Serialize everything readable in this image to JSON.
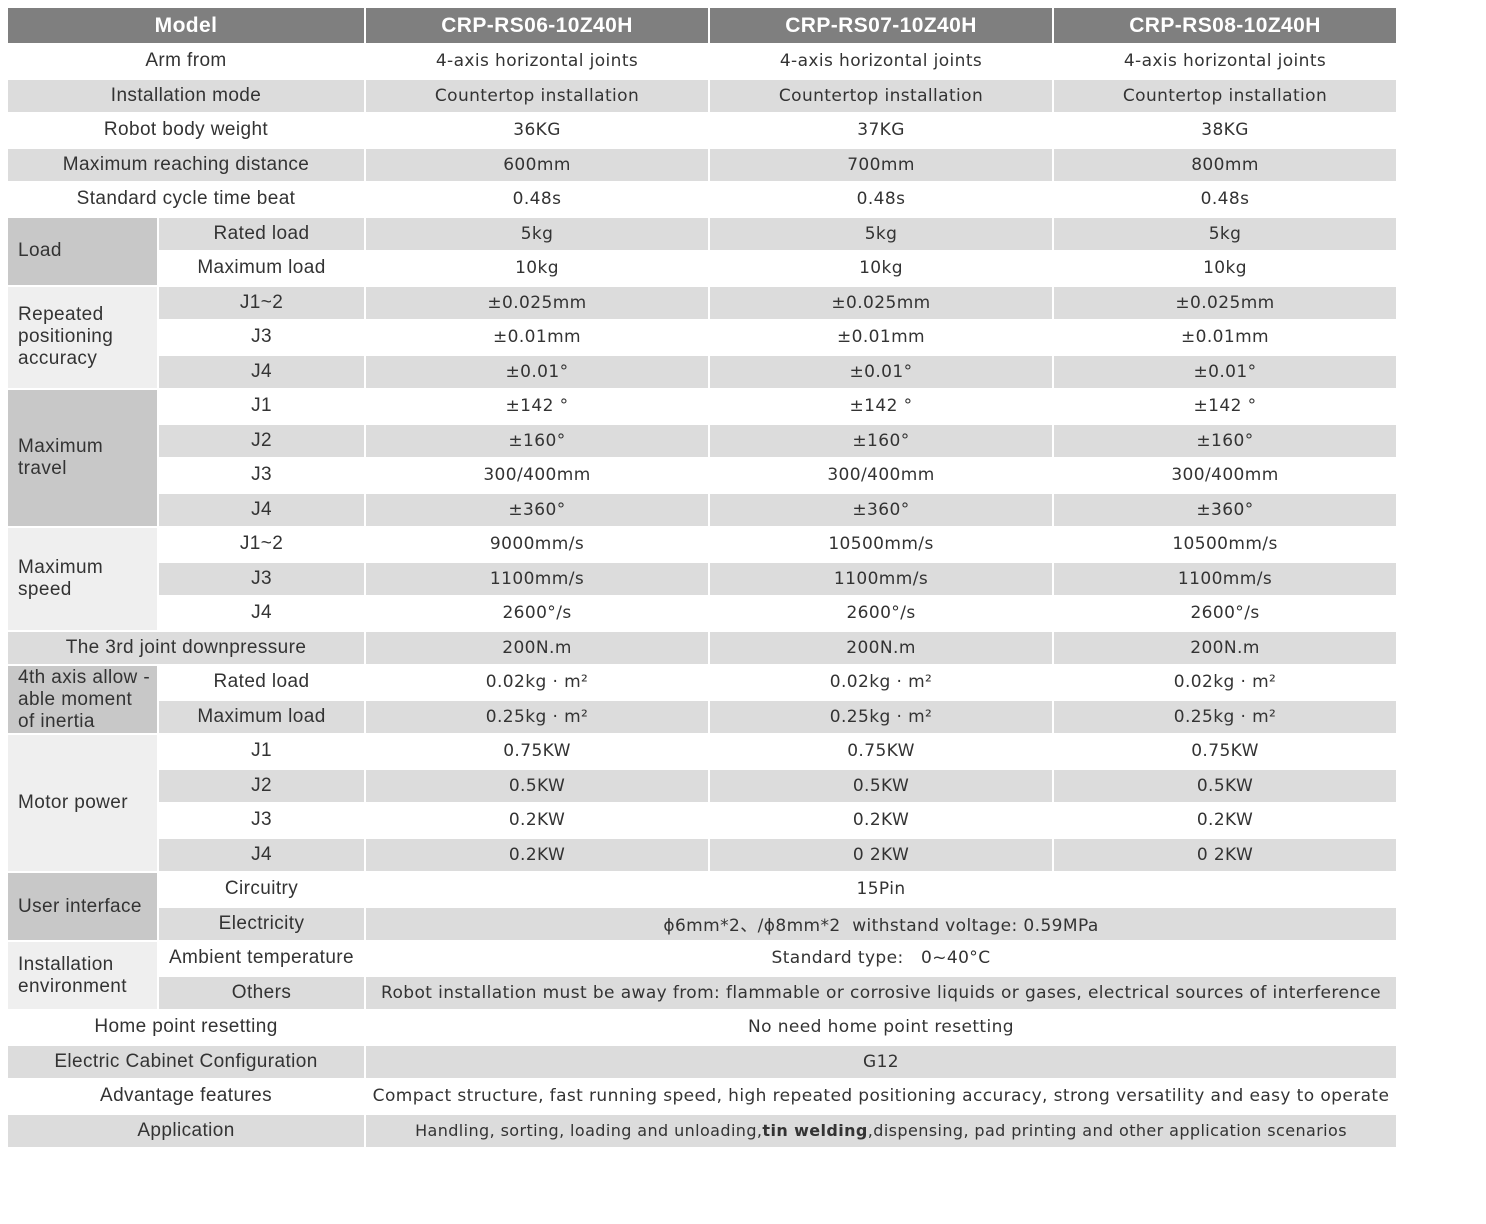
{
  "table": {
    "header": [
      "Model",
      "CRP-RS06-10Z40H",
      "CRP-RS07-10Z40H",
      "CRP-RS08-10Z40H"
    ],
    "rows": [
      {
        "label": "Arm from",
        "values": [
          "4-axis horizontal joints",
          "4-axis horizontal joints",
          "4-axis horizontal joints"
        ]
      },
      {
        "label": "Installation mode",
        "values": [
          "Countertop installation",
          "Countertop installation",
          "Countertop installation"
        ]
      },
      {
        "label": "Robot body weight",
        "values": [
          "36KG",
          "37KG",
          "38KG"
        ]
      },
      {
        "label": "Maximum reaching distance",
        "values": [
          "600mm",
          "700mm",
          "800mm"
        ]
      },
      {
        "label": "Standard cycle time beat",
        "values": [
          "0.48s",
          "0.48s",
          "0.48s"
        ]
      },
      {
        "group": "Load",
        "rows": [
          {
            "label": "Rated load",
            "values": [
              "5kg",
              "5kg",
              "5kg"
            ]
          },
          {
            "label": "Maximum load",
            "values": [
              "10kg",
              "10kg",
              "10kg"
            ]
          }
        ]
      },
      {
        "group": "Repeated positioning accuracy",
        "rows": [
          {
            "label": "J1~2",
            "values": [
              "±0.025mm",
              "±0.025mm",
              "±0.025mm"
            ]
          },
          {
            "label": "J3",
            "values": [
              "±0.01mm",
              "±0.01mm",
              "±0.01mm"
            ]
          },
          {
            "label": "J4",
            "values": [
              "±0.01°",
              "±0.01°",
              "±0.01°"
            ]
          }
        ]
      },
      {
        "group": "Maximum travel",
        "rows": [
          {
            "label": "J1",
            "values": [
              "±142 °",
              "±142 °",
              "±142 °"
            ]
          },
          {
            "label": "J2",
            "values": [
              "±160°",
              "±160°",
              "±160°"
            ]
          },
          {
            "label": "J3",
            "values": [
              "300/400mm",
              "300/400mm",
              "300/400mm"
            ]
          },
          {
            "label": "J4",
            "values": [
              "±360°",
              "±360°",
              "±360°"
            ]
          }
        ]
      },
      {
        "group": "Maximum speed",
        "rows": [
          {
            "label": "J1~2",
            "values": [
              "9000mm/s",
              "10500mm/s",
              "10500mm/s"
            ]
          },
          {
            "label": "J3",
            "values": [
              "1100mm/s",
              "1100mm/s",
              "1100mm/s"
            ]
          },
          {
            "label": "J4",
            "values": [
              "2600°/s",
              "2600°/s",
              "2600°/s"
            ]
          }
        ]
      },
      {
        "label": "The 3rd joint downpressure",
        "values": [
          "200N.m",
          "200N.m",
          "200N.m"
        ]
      },
      {
        "group": "4th axis allow -able moment of inertia",
        "rows": [
          {
            "label": "Rated load",
            "values": [
              "0.02kg · m²",
              "0.02kg · m²",
              "0.02kg · m²"
            ]
          },
          {
            "label": "Maximum load",
            "values": [
              "0.25kg · m²",
              "0.25kg · m²",
              "0.25kg · m²"
            ]
          }
        ]
      },
      {
        "group": "Motor power",
        "rows": [
          {
            "label": "J1",
            "values": [
              "0.75KW",
              "0.75KW",
              "0.75KW"
            ]
          },
          {
            "label": "J2",
            "values": [
              "0.5KW",
              "0.5KW",
              "0.5KW"
            ]
          },
          {
            "label": "J3",
            "values": [
              "0.2KW",
              "0.2KW",
              "0.2KW"
            ]
          },
          {
            "label": "J4",
            "values": [
              "0.2KW",
              "0 2KW",
              "0 2KW"
            ]
          }
        ]
      },
      {
        "group": "User interface",
        "rows": [
          {
            "label": "Circuitry",
            "value": "15Pin"
          },
          {
            "label": "Electricity",
            "value": "ϕ6mm*2、/ϕ8mm*2  withstand voltage: 0.59MPa"
          }
        ]
      },
      {
        "group": "Installation environment",
        "rows": [
          {
            "label": "Ambient temperature",
            "value": "Standard type:   0~40°C"
          },
          {
            "label": "Others",
            "value": "Robot installation must be away from: flammable or corrosive liquids or gases, electrical sources of interference"
          }
        ]
      },
      {
        "label": "Home point resetting",
        "value": "No need home point resetting"
      },
      {
        "label": "Electric Cabinet Configuration",
        "value": "G12"
      },
      {
        "label": "Advantage features",
        "value": "Compact structure, fast running speed, high repeated positioning accuracy, strong versatility and easy to operate"
      },
      {
        "label": "Application",
        "segments": [
          "Handling, sorting, loading and unloading,",
          "tin welding",
          ",dispensing, pad printing and other application scenarios"
        ]
      }
    ]
  }
}
